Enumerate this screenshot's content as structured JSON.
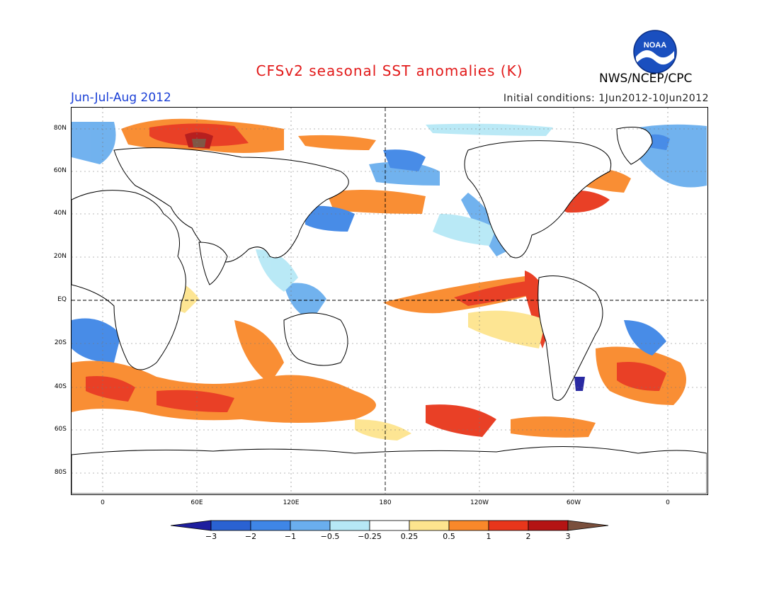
{
  "header": {
    "title": "CFSv2 seasonal SST anomalies (K)",
    "period": "Jun-Jul-Aug 2012",
    "initial_conditions": "Initial conditions: 1Jun2012-10Jun2012",
    "agency": "NWS/NCEP/CPC",
    "logo_text": "NOAA"
  },
  "map": {
    "lat_labels": [
      "80N",
      "60N",
      "40N",
      "20N",
      "EQ",
      "20S",
      "40S",
      "60S",
      "80S"
    ],
    "lon_labels": [
      "0",
      "60E",
      "120E",
      "180",
      "120W",
      "60W",
      "0"
    ]
  },
  "colorbar": {
    "labels": [
      "-3",
      "-2",
      "-1",
      "-0.5",
      "-0.25",
      "0.25",
      "0.5",
      "1",
      "2",
      "3"
    ],
    "colors": [
      "#1e1e9e",
      "#2a62d2",
      "#3f86e6",
      "#6aaeee",
      "#b6e8f6",
      "#ffffff",
      "#fde48e",
      "#f9882a",
      "#e8361b",
      "#b41414",
      "#7a4f3c"
    ]
  },
  "colors": {
    "title": "#e21a1a",
    "period": "#1a3fd6",
    "noaa_blue": "#1a4fbf"
  }
}
